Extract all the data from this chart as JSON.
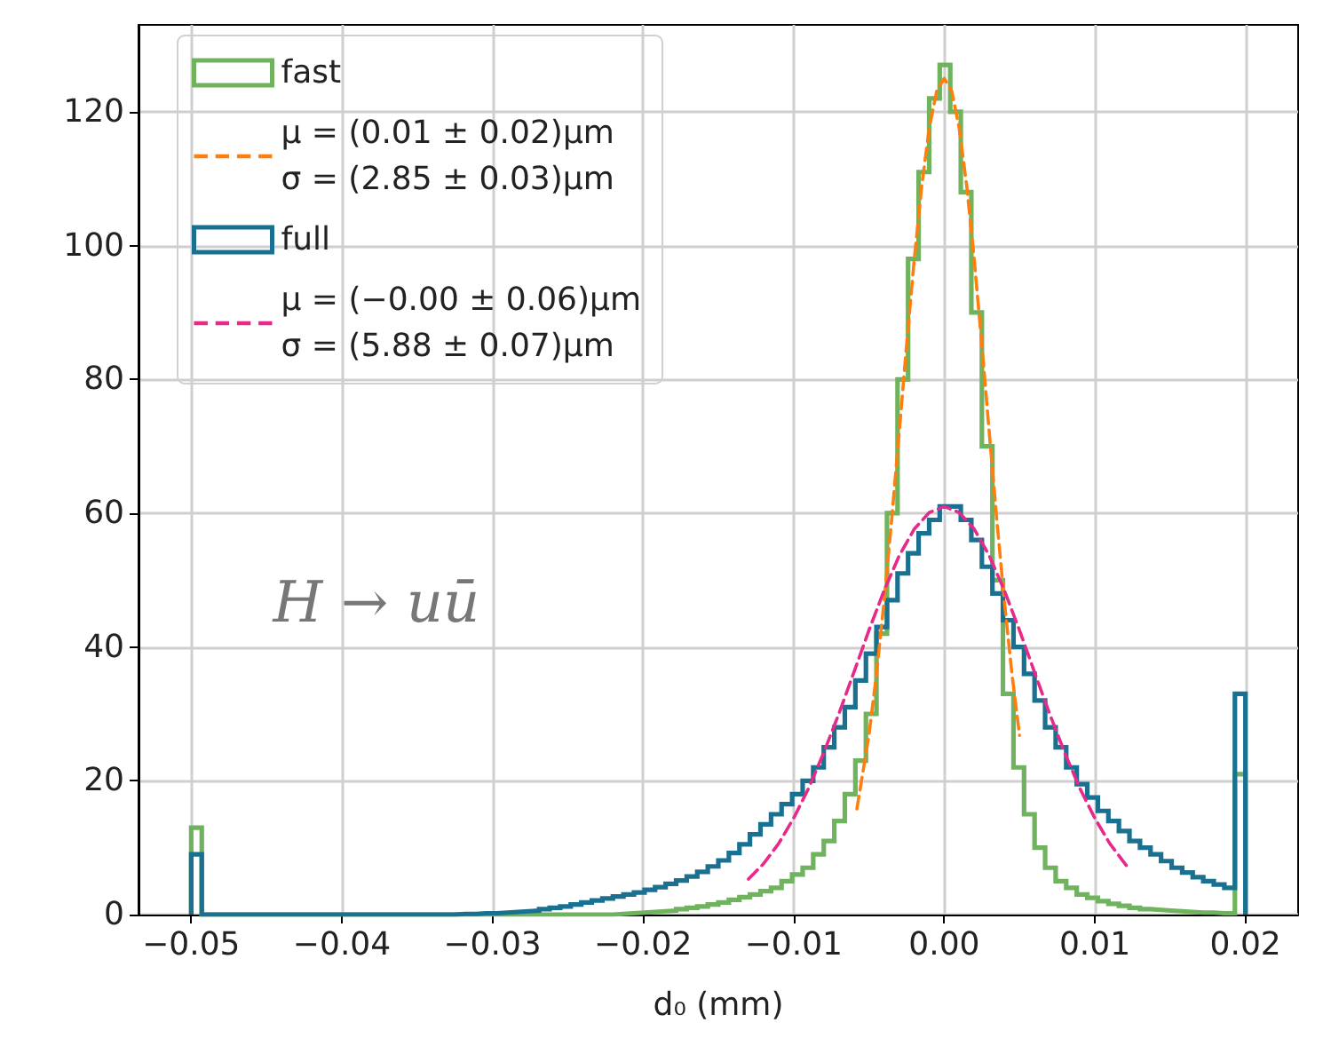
{
  "chart_data": {
    "type": "histogram",
    "xlabel": "d₀ (mm)",
    "bins": [
      -0.05,
      -0.0493,
      -0.0486,
      -0.0479,
      -0.0472,
      -0.0465,
      -0.0458,
      -0.0451,
      -0.0444,
      -0.0437,
      -0.043,
      -0.0423,
      -0.0416,
      -0.0409,
      -0.0402,
      -0.0395,
      -0.0388,
      -0.0381,
      -0.0374,
      -0.0367,
      -0.036,
      -0.0353,
      -0.0346,
      -0.0339,
      -0.0332,
      -0.0325,
      -0.0318,
      -0.0311,
      -0.0304,
      -0.0297,
      -0.029,
      -0.0283,
      -0.0276,
      -0.0269,
      -0.0262,
      -0.0255,
      -0.0248,
      -0.0241,
      -0.0234,
      -0.0227,
      -0.022,
      -0.0213,
      -0.0206,
      -0.0199,
      -0.0192,
      -0.0185,
      -0.0178,
      -0.0171,
      -0.0164,
      -0.0157,
      -0.015,
      -0.0143,
      -0.0136,
      -0.0129,
      -0.0122,
      -0.0115,
      -0.0108,
      -0.0101,
      -0.0094,
      -0.0087,
      -0.008,
      -0.0073,
      -0.0066,
      -0.0059,
      -0.0052,
      -0.0045,
      -0.0038,
      -0.0031,
      -0.0024,
      -0.0017,
      -0.001,
      -0.0003,
      0.0004,
      0.0011,
      0.0018,
      0.0025,
      0.0032,
      0.0039,
      0.0046,
      0.0053,
      0.006,
      0.0067,
      0.0074,
      0.0081,
      0.0088,
      0.0095,
      0.0102,
      0.0109,
      0.0116,
      0.0123,
      0.013,
      0.0137,
      0.0144,
      0.0151,
      0.0158,
      0.0165,
      0.0172,
      0.0179,
      0.0186,
      0.0193,
      0.02
    ],
    "series": [
      {
        "name": "fast",
        "color": "#6fb35e",
        "values": [
          13,
          0,
          0,
          0,
          0,
          0,
          0,
          0,
          0,
          0,
          0,
          0,
          0,
          0,
          0,
          0,
          0,
          0,
          0,
          0,
          0,
          0,
          0,
          0,
          0,
          0,
          0,
          0,
          0,
          0,
          0,
          0,
          0,
          0,
          0,
          0,
          0,
          0,
          0,
          0,
          0.1,
          0.2,
          0.3,
          0.4,
          0.5,
          0.6,
          0.8,
          1,
          1.2,
          1.5,
          1.8,
          2.2,
          2.6,
          3,
          3.5,
          4,
          5,
          6,
          7,
          9,
          11,
          14,
          18,
          23,
          30,
          42,
          60,
          80,
          98,
          111,
          122,
          127,
          120,
          108,
          90,
          70,
          50,
          33,
          22,
          15,
          10,
          7,
          5,
          4,
          3,
          2.5,
          2,
          1.6,
          1.3,
          1,
          0.8,
          0.7,
          0.6,
          0.5,
          0.4,
          0.3,
          0.3,
          0.2,
          0.2,
          21
        ]
      },
      {
        "name": "μ = (0.01 ± 0.02)μm\nσ = (2.85 ± 0.03)μm",
        "type": "line",
        "color": "#ff7f0e",
        "line_style": "dashed",
        "x": [
          -0.0058,
          -0.005,
          -0.0045,
          -0.004,
          -0.0035,
          -0.003,
          -0.0025,
          -0.002,
          -0.0015,
          -0.001,
          -0.0005,
          0,
          0.0005,
          0.001,
          0.0015,
          0.002,
          0.0025,
          0.003,
          0.0035,
          0.004,
          0.0045,
          0.005
        ],
        "values": [
          15.8,
          26.8,
          35.9,
          46.7,
          58.8,
          71.8,
          85.1,
          97.7,
          108.8,
          117.5,
          123.1,
          125,
          123.1,
          117.5,
          108.8,
          97.7,
          85.1,
          71.8,
          58.8,
          46.7,
          35.9,
          26.8
        ]
      },
      {
        "name": "full",
        "color": "#1a7090",
        "values": [
          9,
          0,
          0,
          0,
          0,
          0,
          0,
          0,
          0,
          0,
          0,
          0,
          0,
          0,
          0,
          0,
          0,
          0,
          0,
          0,
          0,
          0,
          0,
          0,
          0,
          0.1,
          0.1,
          0.2,
          0.2,
          0.3,
          0.4,
          0.5,
          0.6,
          0.8,
          1,
          1.2,
          1.5,
          1.8,
          2.1,
          2.4,
          2.7,
          3,
          3.3,
          3.7,
          4.1,
          4.6,
          5.1,
          5.7,
          6.4,
          7.2,
          8.1,
          9.2,
          10.5,
          12,
          13.5,
          15,
          16.5,
          18,
          20,
          22,
          25,
          28,
          31,
          35,
          39,
          43,
          47,
          51,
          54,
          57,
          59,
          61,
          61,
          59,
          56,
          52,
          48,
          44,
          40,
          36,
          32,
          28,
          25,
          22,
          19.5,
          17.5,
          15.5,
          14,
          12.5,
          11,
          10,
          9,
          8,
          7,
          6.3,
          5.6,
          5,
          4.5,
          4,
          33
        ]
      },
      {
        "name": "μ = (−0.00 ± 0.06)μm\nσ = (5.88 ± 0.07)μm",
        "type": "line",
        "color": "#e7298a",
        "line_style": "dashed",
        "x": [
          -0.013,
          -0.012,
          -0.011,
          -0.01,
          -0.009,
          -0.008,
          -0.007,
          -0.006,
          -0.005,
          -0.004,
          -0.003,
          -0.002,
          -0.001,
          0,
          0.001,
          0.002,
          0.003,
          0.004,
          0.005,
          0.006,
          0.007,
          0.008,
          0.009,
          0.01,
          0.011,
          0.0121
        ],
        "values": [
          5.3,
          7.6,
          10.6,
          14.4,
          18.9,
          24.2,
          30,
          36.2,
          42.5,
          48.4,
          53.6,
          57.6,
          60.1,
          61,
          60.1,
          57.6,
          53.6,
          48.4,
          42.5,
          36.2,
          30,
          24.2,
          18.9,
          14.4,
          10.6,
          7.3
        ]
      }
    ],
    "annotations": [
      "H → uū"
    ],
    "xlim": [
      -0.0535,
      0.0235
    ],
    "xticks": [
      {
        "value": -0.05,
        "label": "−0.05"
      },
      {
        "value": -0.04,
        "label": "−0.04"
      },
      {
        "value": -0.03,
        "label": "−0.03"
      },
      {
        "value": -0.02,
        "label": "−0.02"
      },
      {
        "value": -0.01,
        "label": "−0.01"
      },
      {
        "value": 0,
        "label": "0.00"
      },
      0.01,
      0.02
    ],
    "ylim": [
      0,
      133
    ],
    "yticks": [
      0,
      20,
      40,
      60,
      80,
      100,
      120
    ],
    "grid": true,
    "legend": "top left",
    "marker": "none"
  }
}
